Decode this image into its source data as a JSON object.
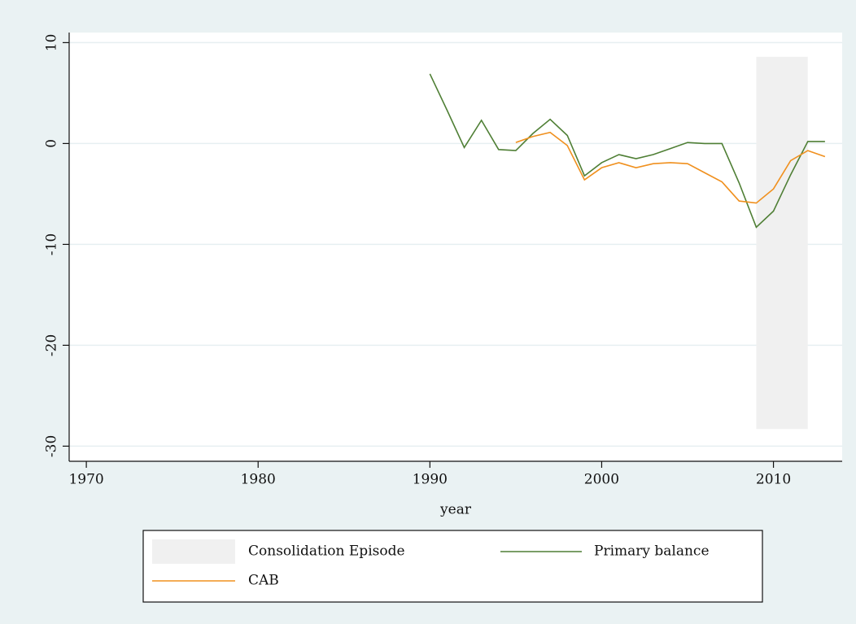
{
  "chart_data": {
    "type": "line",
    "x_label": "year",
    "x": [
      1990,
      1991,
      1992,
      1993,
      1994,
      1995,
      1996,
      1997,
      1998,
      1999,
      2000,
      2001,
      2002,
      2003,
      2004,
      2005,
      2006,
      2007,
      2008,
      2009,
      2010,
      2011,
      2012,
      2013
    ],
    "series": [
      {
        "name": "Primary balance",
        "color": "#4f7f35",
        "values": [
          6.9,
          3.3,
          -0.4,
          2.3,
          -0.6,
          -0.7,
          1.0,
          2.4,
          0.8,
          -3.2,
          -1.9,
          -1.1,
          -1.5,
          -1.1,
          -0.5,
          0.1,
          0,
          0,
          -3.9,
          -8.3,
          -6.7,
          -3.1,
          0.2,
          0.2
        ]
      },
      {
        "name": "CAB",
        "color": "#f0901e",
        "values": [
          null,
          null,
          null,
          null,
          null,
          0.1,
          0.7,
          1.1,
          -0.2,
          -3.6,
          -2.4,
          -1.9,
          -2.4,
          -2.0,
          -1.9,
          -2.0,
          -2.9,
          -3.8,
          -5.7,
          -5.9,
          -4.5,
          -1.7,
          -0.7,
          -1.3
        ]
      }
    ],
    "shade": {
      "name": "Consolidation Episode",
      "color": "#f0f0f0",
      "x": [
        2009,
        2012
      ],
      "y": [
        -28.3,
        8.6
      ]
    },
    "xlim": [
      1969,
      2014
    ],
    "xticks": [
      1970,
      1980,
      1990,
      2000,
      2010
    ],
    "ylim": [
      -31.5,
      11
    ],
    "yticks": [
      -30,
      -20,
      -10,
      0,
      10
    ],
    "grid": true
  }
}
